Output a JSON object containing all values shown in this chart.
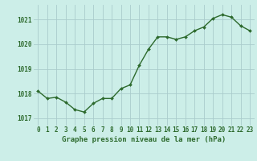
{
  "x": [
    0,
    1,
    2,
    3,
    4,
    5,
    6,
    7,
    8,
    9,
    10,
    11,
    12,
    13,
    14,
    15,
    16,
    17,
    18,
    19,
    20,
    21,
    22,
    23
  ],
  "y": [
    1018.1,
    1017.8,
    1017.85,
    1017.65,
    1017.35,
    1017.25,
    1017.6,
    1017.8,
    1017.8,
    1018.2,
    1018.35,
    1019.15,
    1019.8,
    1020.3,
    1020.3,
    1020.2,
    1020.3,
    1020.55,
    1020.7,
    1021.05,
    1021.2,
    1021.1,
    1020.75,
    1020.55
  ],
  "line_color": "#2d6a2d",
  "marker": "D",
  "markersize": 2,
  "linewidth": 1.0,
  "bg_color": "#cceee8",
  "grid_color": "#aacccc",
  "ylabel_ticks": [
    1017,
    1018,
    1019,
    1020,
    1021
  ],
  "xlabel_ticks": [
    0,
    1,
    2,
    3,
    4,
    5,
    6,
    7,
    8,
    9,
    10,
    11,
    12,
    13,
    14,
    15,
    16,
    17,
    18,
    19,
    20,
    21,
    22,
    23
  ],
  "xlabel_labels": [
    "0",
    "1",
    "2",
    "3",
    "4",
    "5",
    "6",
    "7",
    "8",
    "9",
    "10",
    "11",
    "12",
    "13",
    "14",
    "15",
    "16",
    "17",
    "18",
    "19",
    "20",
    "21",
    "22",
    "23"
  ],
  "xlabel": "Graphe pression niveau de la mer (hPa)",
  "xlim": [
    -0.5,
    23.5
  ],
  "ylim": [
    1016.7,
    1021.6
  ],
  "tick_color": "#2d6a2d",
  "tick_fontsize": 5.5,
  "xlabel_fontsize": 6.5
}
